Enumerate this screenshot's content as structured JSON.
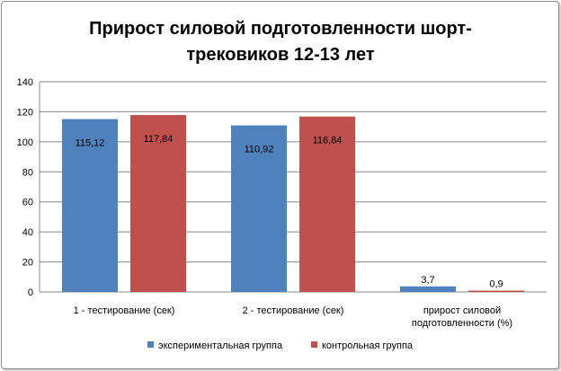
{
  "chart_data": {
    "type": "bar",
    "title": "Прирост силовой подготовленности шорт-трековиков 12-13 лет",
    "title_lines": [
      "Прирост силовой подготовленности шорт-",
      "трековиков 12-13 лет"
    ],
    "categories": [
      "1 - тестирование (сек)",
      "2 - тестирование (сек)",
      "прирост силовой подготовленности (%)"
    ],
    "category_label_lines": [
      [
        "1 - тестирование (сек)"
      ],
      [
        "2 - тестирование (сек)"
      ],
      [
        "прирост силовой",
        "подготовленности (%)"
      ]
    ],
    "series": [
      {
        "name": "экспериментальная группа",
        "values": [
          115.12,
          110.92,
          3.7
        ],
        "labels": [
          "115,12",
          "110,92",
          "3,7"
        ],
        "color": "#4f81bd"
      },
      {
        "name": "контрольная группа",
        "values": [
          117.84,
          116.84,
          0.9
        ],
        "labels": [
          "117,84",
          "116,84",
          "0,9"
        ],
        "color": "#c0504d"
      }
    ],
    "ylim": [
      0,
      140
    ],
    "yticks": [
      0,
      20,
      40,
      60,
      80,
      100,
      120,
      140
    ],
    "grid": true,
    "legend_position": "bottom"
  }
}
